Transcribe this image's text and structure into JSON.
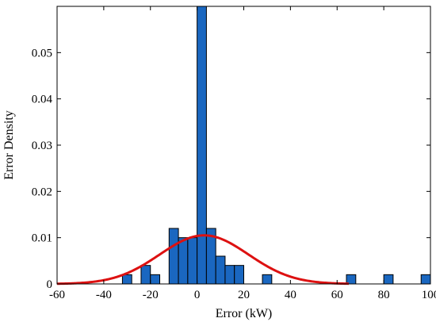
{
  "chart_data": {
    "type": "histogram",
    "xlabel": "Error (kW)",
    "ylabel": "Error Density",
    "xlim": [
      -60,
      100
    ],
    "ylim": [
      0,
      0.06
    ],
    "xticks": [
      -60,
      -40,
      -20,
      0,
      20,
      40,
      60,
      80,
      100
    ],
    "yticks": [
      0,
      0.01,
      0.02,
      0.03,
      0.04,
      0.05
    ],
    "ytick_labels": [
      "0",
      "0.01",
      "0.02",
      "0.03",
      "0.04",
      "0.05"
    ],
    "bin_width": 4,
    "bins": [
      {
        "x0": -32,
        "x1": -28,
        "density": 0.002
      },
      {
        "x0": -24,
        "x1": -20,
        "density": 0.004
      },
      {
        "x0": -20,
        "x1": -16,
        "density": 0.002
      },
      {
        "x0": -12,
        "x1": -8,
        "density": 0.012
      },
      {
        "x0": -8,
        "x1": -4,
        "density": 0.01
      },
      {
        "x0": -4,
        "x1": 0,
        "density": 0.01
      },
      {
        "x0": 0,
        "x1": 4,
        "density": 0.06
      },
      {
        "x0": 4,
        "x1": 8,
        "density": 0.012
      },
      {
        "x0": 8,
        "x1": 12,
        "density": 0.006
      },
      {
        "x0": 12,
        "x1": 16,
        "density": 0.004
      },
      {
        "x0": 16,
        "x1": 20,
        "density": 0.004
      },
      {
        "x0": 28,
        "x1": 32,
        "density": 0.002
      },
      {
        "x0": 64,
        "x1": 68,
        "density": 0.002
      },
      {
        "x0": 80,
        "x1": 84,
        "density": 0.002
      },
      {
        "x0": 96,
        "x1": 100,
        "density": 0.002
      }
    ],
    "fit_curve": {
      "type": "normal",
      "mean": 3,
      "std": 19,
      "peak": 0.0105,
      "x_range": [
        -60,
        65
      ]
    },
    "colors": {
      "bar_fill": "#1a67c0",
      "bar_edge": "#000000",
      "curve": "#dd1111"
    },
    "grid": false
  }
}
